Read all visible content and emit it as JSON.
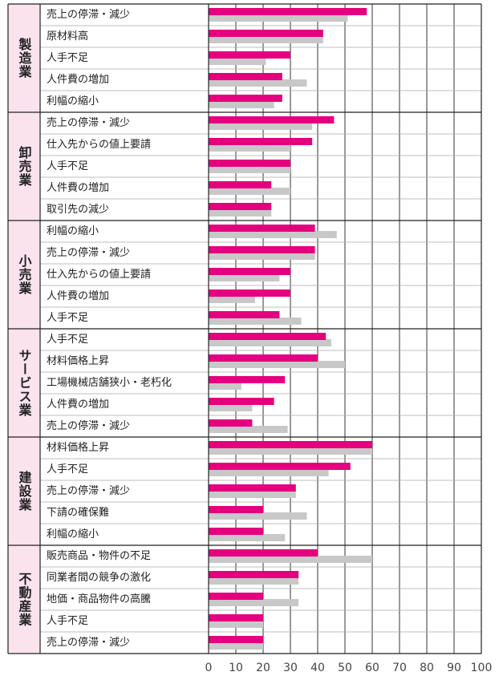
{
  "chart_data": {
    "type": "grouped-hbar",
    "groups": [
      {
        "label": "製造業",
        "categories": [
          "売上の停滞・減少",
          "原材料高",
          "人手不足",
          "人件費の増加",
          "利幅の縮小"
        ]
      },
      {
        "label": "卸売業",
        "categories": [
          "売上の停滞・減少",
          "仕入先からの値上要請",
          "人手不足",
          "人件費の増加",
          "取引先の減少"
        ]
      },
      {
        "label": "小売業",
        "categories": [
          "利幅の縮小",
          "売上の停滞・減少",
          "仕入先からの値上要請",
          "人件費の増加",
          "人手不足"
        ]
      },
      {
        "label": "サービス業",
        "categories": [
          "人手不足",
          "材料価格上昇",
          "工場機械店舗狭小・老朽化",
          "人件費の増加",
          "売上の停滞・減少"
        ]
      },
      {
        "label": "建設業",
        "categories": [
          "材料価格上昇",
          "人手不足",
          "売上の停滞・減少",
          "下請の確保難",
          "利幅の縮小"
        ]
      },
      {
        "label": "不動産業",
        "categories": [
          "販売商品・物件の不足",
          "同業者間の競争の激化",
          "地価・商品物件の高騰",
          "人手不足",
          "売上の停滞・減少"
        ]
      }
    ],
    "series": [
      {
        "color": "#c8c8c8",
        "values": [
          51,
          42,
          21,
          36,
          24,
          38,
          30,
          30,
          30,
          23,
          47,
          39,
          26,
          17,
          34,
          45,
          50,
          12,
          16,
          29,
          60,
          44,
          32,
          36,
          28,
          60,
          33,
          33,
          20,
          20
        ]
      },
      {
        "color": "#e4007f",
        "values": [
          58,
          42,
          30,
          27,
          27,
          46,
          38,
          30,
          23,
          23,
          39,
          39,
          30,
          30,
          26,
          43,
          40,
          28,
          24,
          16,
          60,
          52,
          32,
          20,
          20,
          40,
          33,
          20,
          20,
          20
        ]
      }
    ],
    "xlim": [
      0,
      100
    ],
    "xticks": [
      0,
      10,
      20,
      30,
      40,
      50,
      60,
      70,
      80,
      90,
      100
    ],
    "grid": true
  }
}
